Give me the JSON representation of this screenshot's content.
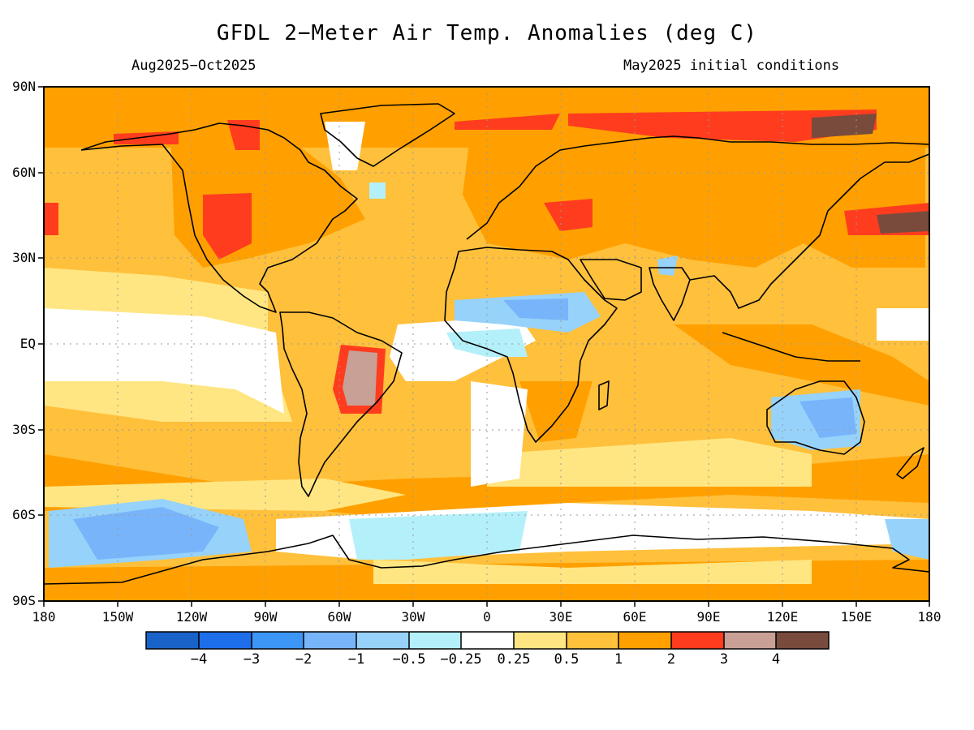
{
  "title": "GFDL 2−Meter Air Temp. Anomalies (deg C)",
  "period": "Aug2025−Oct2025",
  "initial_conditions": "May2025 initial conditions",
  "lat_labels": [
    "90N",
    "60N",
    "30N",
    "EQ",
    "30S",
    "60S",
    "90S"
  ],
  "lon_labels": [
    "180",
    "150W",
    "120W",
    "90W",
    "60W",
    "30W",
    "0",
    "30E",
    "60E",
    "90E",
    "120E",
    "150E",
    "180"
  ],
  "colorbar": {
    "labels": [
      "−4",
      "−3",
      "−2",
      "−1",
      "−0.5",
      "−0.25",
      "0.25",
      "0.5",
      "1",
      "2",
      "3",
      "4"
    ],
    "colors": [
      "#1963c8",
      "#1e6eeb",
      "#3c96f5",
      "#78b4fa",
      "#96d2fa",
      "#b4f0fa",
      "#ffffff",
      "#ffe682",
      "#ffc03c",
      "#ffa000",
      "#ff3c1e",
      "#c8a096",
      "#784b3c"
    ]
  },
  "colors": {
    "land_outline": "#000000",
    "grid": "#9a9a9a",
    "ocean_base": "#ffc03c"
  }
}
